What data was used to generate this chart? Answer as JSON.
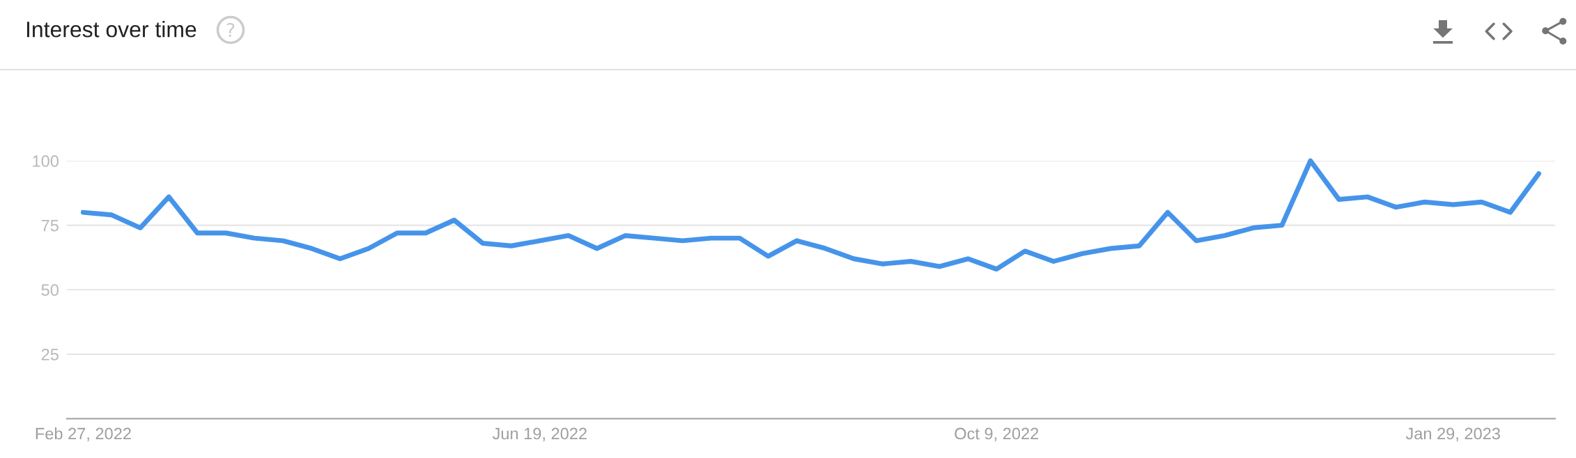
{
  "chart_data": {
    "type": "line",
    "title": "Interest over time",
    "x": [
      "2022-02-27",
      "2022-03-06",
      "2022-03-13",
      "2022-03-20",
      "2022-03-27",
      "2022-04-03",
      "2022-04-10",
      "2022-04-17",
      "2022-04-24",
      "2022-05-01",
      "2022-05-08",
      "2022-05-15",
      "2022-05-22",
      "2022-05-29",
      "2022-06-05",
      "2022-06-12",
      "2022-06-19",
      "2022-06-26",
      "2022-07-03",
      "2022-07-10",
      "2022-07-17",
      "2022-07-24",
      "2022-07-31",
      "2022-08-07",
      "2022-08-14",
      "2022-08-21",
      "2022-08-28",
      "2022-09-04",
      "2022-09-11",
      "2022-09-18",
      "2022-09-25",
      "2022-10-02",
      "2022-10-09",
      "2022-10-16",
      "2022-10-23",
      "2022-10-30",
      "2022-11-06",
      "2022-11-13",
      "2022-11-20",
      "2022-11-27",
      "2022-12-04",
      "2022-12-11",
      "2022-12-18",
      "2022-12-25",
      "2023-01-01",
      "2023-01-08",
      "2023-01-15",
      "2023-01-22",
      "2023-01-29",
      "2023-02-05",
      "2023-02-12",
      "2023-02-19"
    ],
    "series": [
      {
        "color": "#4694ea",
        "values": [
          80,
          79,
          74,
          86,
          72,
          72,
          70,
          69,
          66,
          62,
          66,
          72,
          72,
          77,
          68,
          67,
          69,
          71,
          66,
          71,
          70,
          69,
          70,
          70,
          63,
          69,
          66,
          62,
          60,
          61,
          59,
          62,
          58,
          65,
          61,
          64,
          66,
          67,
          80,
          69,
          71,
          74,
          75,
          100,
          85,
          86,
          82,
          84,
          83,
          84,
          80,
          95
        ]
      }
    ],
    "xlim": [
      "2022-02-23",
      "2023-02-23"
    ],
    "ylim": [
      0,
      100
    ],
    "xticks": [
      {
        "value": "2022-02-27",
        "label": "Feb 27, 2022"
      },
      {
        "value": "2022-06-19",
        "label": "Jun 19, 2022"
      },
      {
        "value": "2022-10-09",
        "label": "Oct 9, 2022"
      },
      {
        "value": "2023-01-29",
        "label": "Jan 29, 2023"
      }
    ],
    "yticks": [
      25,
      50,
      75,
      100
    ],
    "grid": "y",
    "line_style": "solid"
  }
}
